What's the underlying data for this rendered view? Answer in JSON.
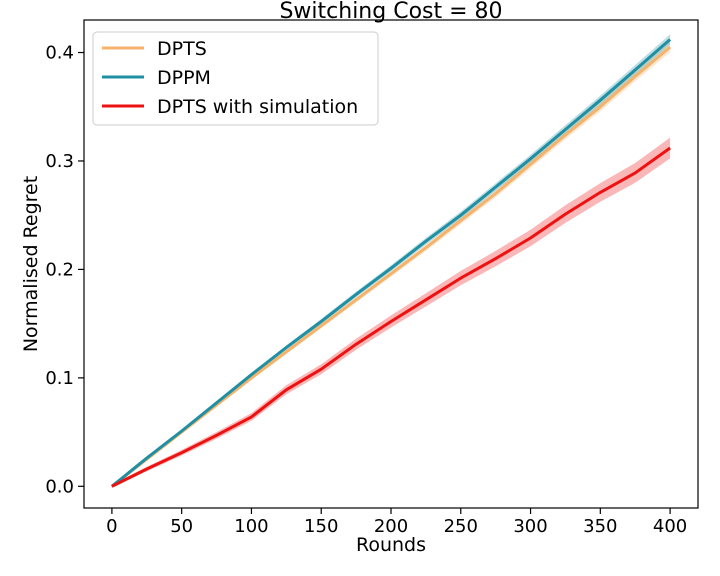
{
  "chart_data": {
    "type": "line",
    "title": "Switching Cost = 80",
    "xlabel": "Rounds",
    "ylabel": "Normalised Regret",
    "xlim": [
      -20,
      420
    ],
    "ylim": [
      -0.02,
      0.43
    ],
    "xticks": [
      0,
      50,
      100,
      150,
      200,
      250,
      300,
      350,
      400
    ],
    "yticks": [
      0.0,
      0.1,
      0.2,
      0.3,
      0.4
    ],
    "xtick_labels": [
      "0",
      "50",
      "100",
      "150",
      "200",
      "250",
      "300",
      "350",
      "400"
    ],
    "ytick_labels": [
      "0.0",
      "0.1",
      "0.2",
      "0.3",
      "0.4"
    ],
    "grid": false,
    "legend_position": "upper-left",
    "x": [
      0,
      25,
      50,
      75,
      100,
      125,
      150,
      175,
      200,
      225,
      250,
      275,
      300,
      325,
      350,
      375,
      400
    ],
    "series": [
      {
        "name": "DPTS",
        "color": "#f5b26b",
        "band_color": "#f5b26b",
        "values": [
          0.0,
          0.025,
          0.05,
          0.075,
          0.1,
          0.124,
          0.148,
          0.172,
          0.196,
          0.22,
          0.245,
          0.27,
          0.297,
          0.324,
          0.35,
          0.378,
          0.405
        ],
        "band": 0.004
      },
      {
        "name": "DPPM",
        "color": "#1f8fa3",
        "band_color": "#1f8fa3",
        "values": [
          0.0,
          0.026,
          0.051,
          0.077,
          0.103,
          0.128,
          0.152,
          0.177,
          0.201,
          0.226,
          0.25,
          0.276,
          0.302,
          0.329,
          0.356,
          0.384,
          0.412
        ],
        "band": 0.004
      },
      {
        "name": "DPTS with simulation",
        "color": "#ee1111",
        "band_color": "#ee1111",
        "values": [
          0.0,
          0.016,
          0.031,
          0.047,
          0.064,
          0.089,
          0.108,
          0.131,
          0.152,
          0.172,
          0.192,
          0.21,
          0.229,
          0.251,
          0.271,
          0.289,
          0.312
        ],
        "band": 0.008
      }
    ]
  }
}
